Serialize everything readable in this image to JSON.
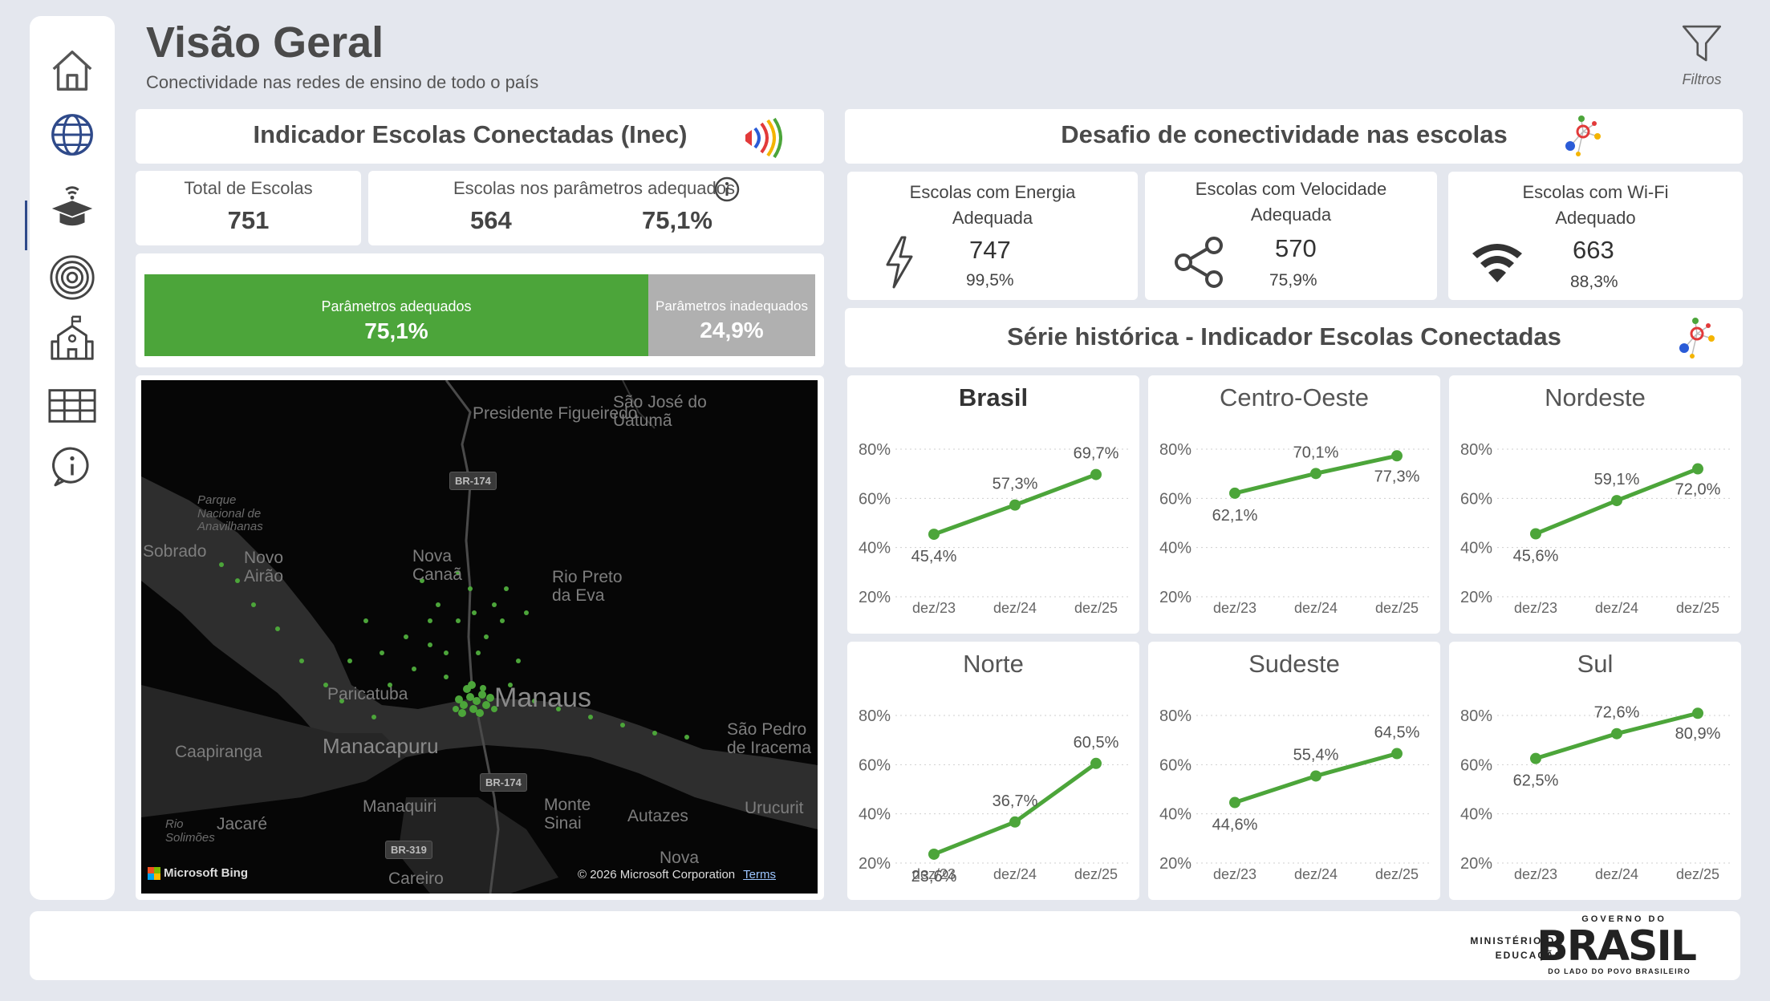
{
  "header": {
    "title": "Visão Geral",
    "subtitle": "Conectividade nas redes de ensino de todo o país",
    "filter_label": "Filtros"
  },
  "sidebar": {
    "items": [
      {
        "name": "home-icon"
      },
      {
        "name": "globe-icon",
        "active": true
      },
      {
        "name": "graduation-cap-wifi-icon"
      },
      {
        "name": "target-icon"
      },
      {
        "name": "school-building-icon"
      },
      {
        "name": "table-icon"
      },
      {
        "name": "info-icon"
      }
    ]
  },
  "inec": {
    "title": "Indicador Escolas Conectadas (Inec)",
    "total_label": "Total de Escolas",
    "total_value": "751",
    "adequate_label": "Escolas nos parâmetros adequados",
    "adequate_count": "564",
    "adequate_pct": "75,1%",
    "bar": {
      "adequate_label": "Parâmetros adequados",
      "adequate_value": "75,1%",
      "adequate_fraction": 0.751,
      "inadequate_label": "Parâmetros inadequados",
      "inadequate_value": "24,9%"
    },
    "colors": {
      "adequate": "#4ca53a",
      "inadequate": "#b0b0b0"
    }
  },
  "map": {
    "labels": [
      "Presidente Figueiredo",
      "São José do Uatumã",
      "Parque Nacional de Anavilhanas",
      "Sobrado",
      "Novo Airão",
      "Nova Canaã",
      "Rio Preto da Eva",
      "Paricatuba",
      "Manaus",
      "Caapiranga",
      "Manacapuru",
      "São Pedro de Iracema",
      "Manaquiri",
      "Monte Sinai",
      "Autazes",
      "Urucurit",
      "Jacaré",
      "Rio Solimões",
      "Careiro",
      "Nova"
    ],
    "roads": [
      "BR-174",
      "BR-174",
      "BR-319"
    ],
    "attribution": "Microsoft Bing",
    "copyright": "© 2026 Microsoft Corporation",
    "terms": "Terms"
  },
  "challenge": {
    "title": "Desafio de conectividade nas escolas",
    "energy": {
      "label_line1": "Escolas com Energia",
      "label_line2": "Adequada",
      "value": "747",
      "pct": "99,5%"
    },
    "speed": {
      "label_line1": "Escolas com Velocidade",
      "label_line2": "Adequada",
      "value": "570",
      "pct": "75,9%"
    },
    "wifi": {
      "label_line1": "Escolas com Wi-Fi",
      "label_line2": "Adequado",
      "value": "663",
      "pct": "88,3%"
    }
  },
  "series_title": "Série histórica - Indicador Escolas Conectadas",
  "chart_data": [
    {
      "type": "line",
      "title": "Brasil",
      "categories": [
        "dez/23",
        "dez/24",
        "dez/25"
      ],
      "values": [
        45.4,
        57.3,
        69.7
      ],
      "value_labels": [
        "45,4%",
        "57,3%",
        "69,7%"
      ],
      "yticks": [
        "80%",
        "60%",
        "40%",
        "20%"
      ],
      "ylim": [
        20,
        80
      ]
    },
    {
      "type": "line",
      "title": "Centro-Oeste",
      "categories": [
        "dez/23",
        "dez/24",
        "dez/25"
      ],
      "values": [
        62.1,
        70.1,
        77.3
      ],
      "value_labels": [
        "62,1%",
        "70,1%",
        "77,3%"
      ],
      "yticks": [
        "80%",
        "60%",
        "40%",
        "20%"
      ],
      "ylim": [
        20,
        80
      ]
    },
    {
      "type": "line",
      "title": "Nordeste",
      "categories": [
        "dez/23",
        "dez/24",
        "dez/25"
      ],
      "values": [
        45.6,
        59.1,
        72.0
      ],
      "value_labels": [
        "45,6%",
        "59,1%",
        "72,0%"
      ],
      "yticks": [
        "80%",
        "60%",
        "40%",
        "20%"
      ],
      "ylim": [
        20,
        80
      ]
    },
    {
      "type": "line",
      "title": "Norte",
      "categories": [
        "dez/23",
        "dez/24",
        "dez/25"
      ],
      "values": [
        23.6,
        36.7,
        60.5
      ],
      "value_labels": [
        "23,6%",
        "36,7%",
        "60,5%"
      ],
      "yticks": [
        "80%",
        "60%",
        "40%",
        "20%"
      ],
      "ylim": [
        20,
        80
      ]
    },
    {
      "type": "line",
      "title": "Sudeste",
      "categories": [
        "dez/23",
        "dez/24",
        "dez/25"
      ],
      "values": [
        44.6,
        55.4,
        64.5
      ],
      "value_labels": [
        "44,6%",
        "55,4%",
        "64,5%"
      ],
      "yticks": [
        "80%",
        "60%",
        "40%",
        "20%"
      ],
      "ylim": [
        20,
        80
      ]
    },
    {
      "type": "line",
      "title": "Sul",
      "categories": [
        "dez/23",
        "dez/24",
        "dez/25"
      ],
      "values": [
        62.5,
        72.6,
        80.9
      ],
      "value_labels": [
        "62,5%",
        "72,6%",
        "80,9%"
      ],
      "yticks": [
        "80%",
        "60%",
        "40%",
        "20%"
      ],
      "ylim": [
        20,
        80
      ]
    }
  ],
  "series_color": "#4ca53a",
  "footer": {
    "ministry_line1": "MINISTÉRIO DA",
    "ministry_line2": "EDUCAÇÃO",
    "gov_top": "GOVERNO DO",
    "gov_brasil": "BRASIL",
    "gov_bottom": "DO LADO DO POVO BRASILEIRO"
  }
}
